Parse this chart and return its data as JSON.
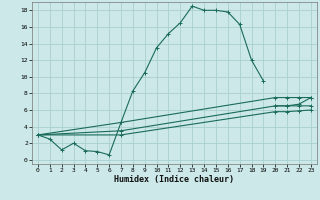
{
  "xlabel": "Humidex (Indice chaleur)",
  "bg_color": "#cce8e8",
  "grid_color": "#aacfcf",
  "line_color": "#1a6b5a",
  "xlim": [
    -0.5,
    23.5
  ],
  "ylim": [
    -0.5,
    19
  ],
  "x_ticks": [
    0,
    1,
    2,
    3,
    4,
    5,
    6,
    7,
    8,
    9,
    10,
    11,
    12,
    13,
    14,
    15,
    16,
    17,
    18,
    19,
    20,
    21,
    22,
    23
  ],
  "y_ticks": [
    0,
    2,
    4,
    6,
    8,
    10,
    12,
    14,
    16,
    18
  ],
  "series": [
    {
      "x": [
        0,
        1,
        2,
        3,
        4,
        5,
        6,
        7,
        8,
        9,
        10,
        11,
        12,
        13,
        14,
        15,
        16,
        17,
        18,
        19
      ],
      "y": [
        3,
        2.5,
        1.2,
        2.0,
        1.1,
        1.0,
        0.6,
        4.5,
        8.3,
        10.5,
        13.5,
        15.2,
        16.5,
        18.5,
        18.0,
        18.0,
        17.8,
        16.3,
        12.0,
        9.5
      ]
    },
    {
      "x": [
        20,
        21,
        22,
        23
      ],
      "y": [
        6.5,
        6.5,
        6.7,
        7.5
      ]
    },
    {
      "x": [
        0,
        7,
        20,
        21,
        22,
        23
      ],
      "y": [
        3,
        4.5,
        7.5,
        7.5,
        7.5,
        7.5
      ]
    },
    {
      "x": [
        0,
        7,
        20,
        21,
        22,
        23
      ],
      "y": [
        3,
        3.5,
        6.5,
        6.5,
        6.5,
        6.5
      ]
    },
    {
      "x": [
        0,
        7,
        20,
        21,
        22,
        23
      ],
      "y": [
        3,
        3.0,
        5.8,
        5.8,
        5.9,
        6.0
      ]
    }
  ]
}
